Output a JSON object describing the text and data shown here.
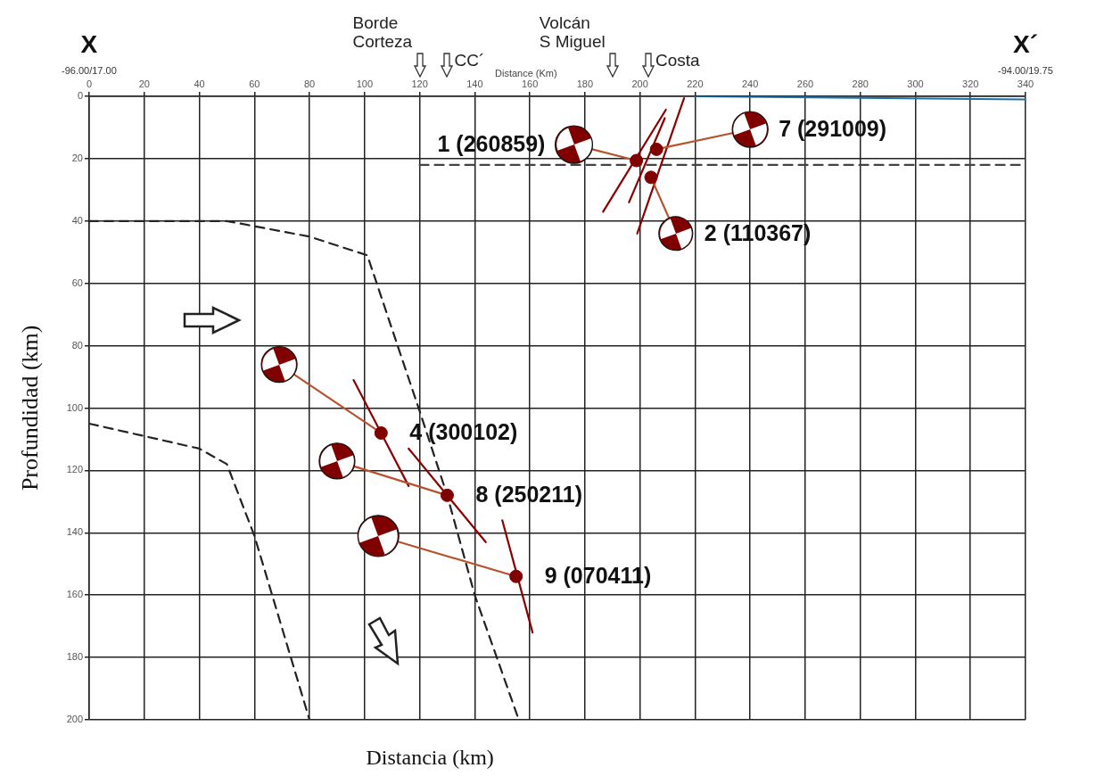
{
  "chart_data": {
    "type": "line",
    "xlabel": "Distancia (km)",
    "x2label": "Distance (Km)",
    "ylabel": "Profundidad (km)",
    "xlim": [
      0,
      340
    ],
    "xticks": [
      0,
      20,
      40,
      60,
      80,
      100,
      120,
      140,
      160,
      180,
      200,
      220,
      240,
      260,
      280,
      300,
      320,
      340
    ],
    "ylim": [
      200,
      0
    ],
    "yticks": [
      0,
      20,
      40,
      60,
      80,
      100,
      120,
      140,
      160,
      180,
      200
    ],
    "grid": true,
    "legend": false,
    "annotations": [
      "X",
      "-96.00/17.00",
      "X´",
      "-94.00/19.75",
      {
        "text": "1 (260859)",
        "x": 176,
        "y": 15.5
      },
      {
        "text": "7 (291009)",
        "x": 240,
        "y": 10.6
      },
      {
        "text": "2 (110367)",
        "x": 213,
        "y": 44
      },
      {
        "text": "4 (300102)",
        "x": 106,
        "y": 108
      },
      {
        "text": "8 (250211)",
        "x": 130,
        "y": 128
      },
      {
        "text": "9 (070411)",
        "x": 155,
        "y": 154
      }
    ],
    "ref_lines": [
      {
        "axis": "x",
        "value": 120,
        "label": "Borde\nCorteza"
      },
      {
        "axis": "x",
        "value": 130,
        "label": "CC´"
      },
      {
        "axis": "x",
        "value": 190,
        "label": "Volcán\nS Miguel"
      },
      {
        "axis": "x",
        "value": 203,
        "label": "Costa"
      }
    ],
    "series": [
      {
        "color": "#222222",
        "line_style": "dashed",
        "x": [
          0,
          50,
          80,
          101,
          112,
          120,
          130,
          140,
          156
        ],
        "values": [
          40,
          40,
          45,
          51,
          80,
          101,
          128,
          160,
          200
        ]
      },
      {
        "color": "#222222",
        "line_style": "dashed",
        "x": [
          0,
          40,
          50,
          60,
          80
        ],
        "values": [
          105,
          113,
          118,
          141,
          200
        ]
      },
      {
        "color": "#444444",
        "line_style": "dashed",
        "x": [
          120,
          340
        ],
        "values": [
          22,
          22
        ]
      },
      {
        "color": "#1f6fa8",
        "line_style": "solid",
        "x": [
          220,
          340
        ],
        "values": [
          0,
          1
        ]
      },
      {
        "color": "#8b0000",
        "line_style": "solid",
        "x": [
          186.6,
          209.4
        ],
        "values": [
          37,
          4.3
        ]
      },
      {
        "color": "#8b0000",
        "line_style": "solid",
        "x": [
          199,
          216
        ],
        "values": [
          44,
          0.6
        ]
      },
      {
        "color": "#8b0000",
        "line_style": "solid",
        "x": [
          196,
          209
        ],
        "values": [
          34,
          7
        ]
      },
      {
        "color": "#8b0000",
        "line_style": "solid",
        "x": [
          96,
          116
        ],
        "values": [
          91,
          125
        ]
      },
      {
        "color": "#8b0000",
        "line_style": "solid",
        "x": [
          116,
          144
        ],
        "values": [
          113,
          143
        ]
      },
      {
        "color": "#8b0000",
        "line_style": "solid",
        "x": [
          150,
          161
        ],
        "values": [
          136,
          172
        ]
      },
      {
        "color": "#b5532f",
        "line_style": "solid",
        "x": [
          198.7,
          176
        ],
        "values": [
          20.6,
          15.5
        ]
      },
      {
        "color": "#b5532f",
        "line_style": "solid",
        "x": [
          204,
          213
        ],
        "values": [
          26,
          44
        ]
      },
      {
        "color": "#b5532f",
        "line_style": "solid",
        "x": [
          206,
          240
        ],
        "values": [
          17,
          10.6
        ]
      },
      {
        "color": "#b5532f",
        "line_style": "solid",
        "x": [
          106,
          69
        ],
        "values": [
          108,
          86
        ]
      },
      {
        "color": "#b5532f",
        "line_style": "solid",
        "x": [
          130,
          90
        ],
        "values": [
          128,
          117
        ]
      },
      {
        "color": "#b5532f",
        "line_style": "solid",
        "x": [
          155,
          105
        ],
        "values": [
          154,
          141
        ]
      },
      {
        "type": "scatter",
        "color": "#800000",
        "marker": "circle",
        "x": [
          198.7,
          206,
          204,
          106,
          130,
          155
        ],
        "values": [
          20.6,
          17,
          26,
          108,
          128,
          154
        ]
      },
      {
        "type": "bubble",
        "color": "#800000",
        "x": [
          176,
          213,
          240,
          69,
          90,
          105
        ],
        "values": [
          15.5,
          44,
          10.6,
          86,
          117,
          141
        ],
        "sizes": [
          0.83,
          0.68,
          0.76,
          0.76,
          0.76,
          1
        ]
      }
    ]
  }
}
